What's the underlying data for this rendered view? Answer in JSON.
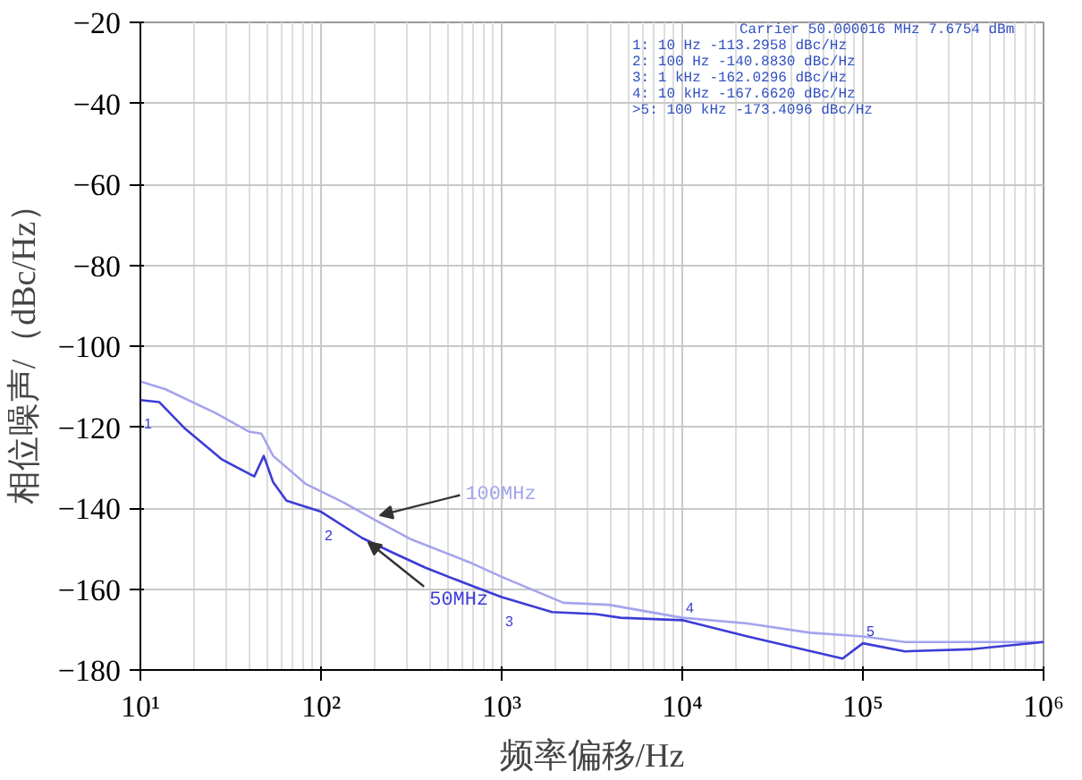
{
  "chart_data": {
    "type": "line",
    "xlabel": "频率偏移/Hz",
    "ylabel": "相位噪声/（dBc/Hz）",
    "log": "x",
    "xlim": [
      10,
      1000000
    ],
    "ylim": [
      -180,
      -20
    ],
    "xticks": [
      {
        "value": 10,
        "label": "10¹"
      },
      {
        "value": 100,
        "label": "10²"
      },
      {
        "value": 1000,
        "label": "10³"
      },
      {
        "value": 10000,
        "label": "10⁴"
      },
      {
        "value": 100000,
        "label": "10⁵"
      },
      {
        "value": 1000000,
        "label": "10⁶"
      }
    ],
    "yticks": [
      -180,
      -160,
      -140,
      -120,
      -100,
      -80,
      -60,
      -40,
      -20
    ],
    "grid": true,
    "marker": "none",
    "line_style": "solid",
    "series": [
      {
        "name": "100MHz",
        "color": "#a4a4ee",
        "x": [
          10,
          13.7,
          26.3,
          39.8,
          46.8,
          54.3,
          82.0,
          133,
          196,
          318,
          656,
          1000,
          2198,
          3926,
          10000,
          22961,
          51050,
          100000,
          171000,
          1000000
        ],
        "values": [
          -108.7,
          -110.6,
          -116.6,
          -121.1,
          -121.6,
          -127.1,
          -134.0,
          -138.6,
          -142.8,
          -147.8,
          -153.3,
          -157.0,
          -163.4,
          -163.9,
          -167.1,
          -168.5,
          -170.8,
          -171.7,
          -173.1,
          -173.1
        ]
      },
      {
        "name": "50MHz",
        "color": "#3c3cd6",
        "x": [
          10,
          12.7,
          17.5,
          28.3,
          42.7,
          48.2,
          54.3,
          64.4,
          100,
          169,
          249,
          377,
          656,
          1000,
          1901,
          3319,
          4550,
          10000,
          22961,
          77090,
          100000,
          171000,
          389000,
          1000000
        ],
        "values": [
          -113.3,
          -113.8,
          -120.2,
          -128.0,
          -132.2,
          -127.1,
          -133.6,
          -138.2,
          -140.9,
          -147.4,
          -151.0,
          -154.7,
          -158.9,
          -162.0,
          -165.7,
          -166.2,
          -167.1,
          -167.7,
          -171.7,
          -177.2,
          -173.4,
          -175.4,
          -174.9,
          -173.1
        ]
      }
    ],
    "annotations": [
      "Carrier 50.000016 MHz    7.6754 dBm",
      "1:  10 Hz    -113.2958 dBc/Hz",
      "2:  100 Hz   -140.8830 dBc/Hz",
      "3:  1 kHz    -162.0296 dBc/Hz",
      "4:  10 kHz   -167.6620 dBc/Hz",
      ">5:  100 kHz  -173.4096 dBc/Hz",
      {
        "text": "1",
        "x": 10,
        "y": -113.3
      },
      {
        "text": "2",
        "x": 100,
        "y": -140.9
      },
      {
        "text": "3",
        "x": 1000,
        "y": -162.0
      },
      {
        "text": "4",
        "x": 10000,
        "y": -167.7
      },
      {
        "text": "5",
        "x": 100000,
        "y": -173.4
      }
    ]
  }
}
